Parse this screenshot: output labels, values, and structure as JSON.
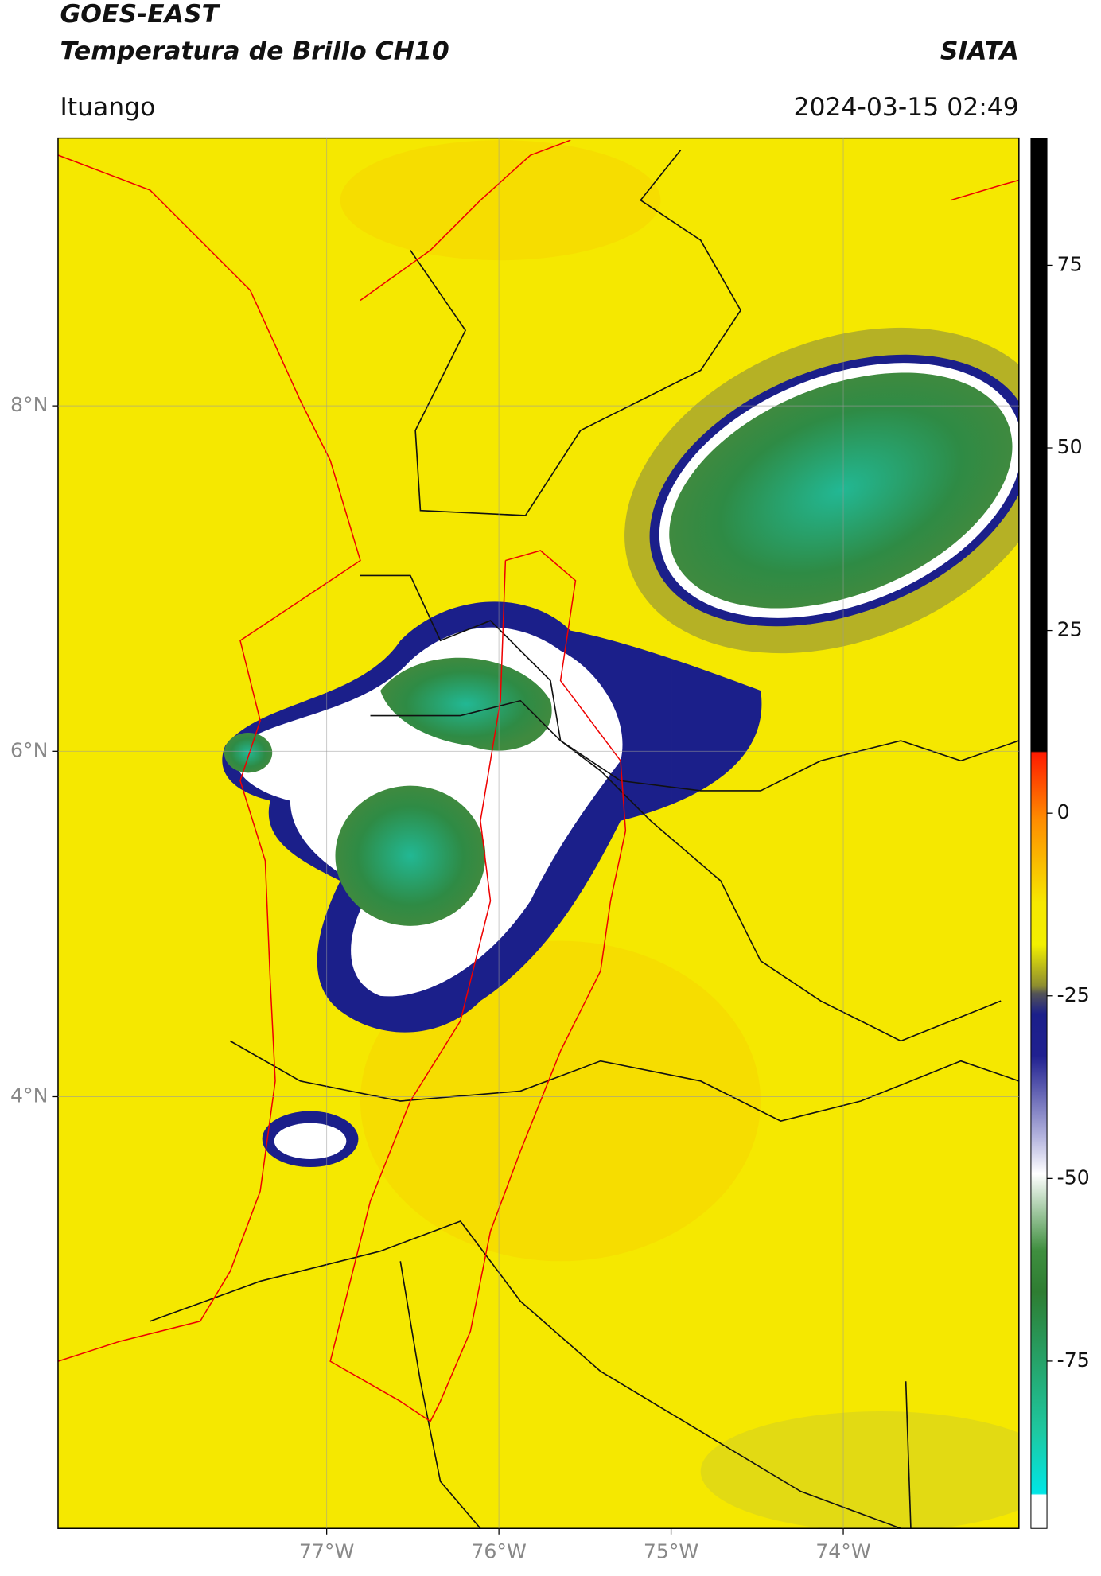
{
  "header": {
    "title": "GOES-EAST",
    "subtitle": "Temperatura de Brillo CH10",
    "source": "SIATA",
    "location": "Ituango",
    "datetime": "2024-03-15 02:49"
  },
  "map": {
    "xlim": [
      -78.56,
      -72.98
    ],
    "ylim": [
      1.5,
      9.55
    ],
    "xticks": [
      {
        "value": -77,
        "label": "77°W"
      },
      {
        "value": -76,
        "label": "76°W"
      },
      {
        "value": -75,
        "label": "75°W"
      },
      {
        "value": -74,
        "label": "74°W"
      }
    ],
    "yticks": [
      {
        "value": 8,
        "label": "8°N"
      },
      {
        "value": 6,
        "label": "6°N"
      },
      {
        "value": 4,
        "label": "4°N"
      }
    ]
  },
  "colorbar": {
    "lim": [
      -97.9,
      92.4
    ],
    "ticks": [
      75,
      50,
      25,
      0,
      -25,
      -50,
      -75
    ]
  }
}
